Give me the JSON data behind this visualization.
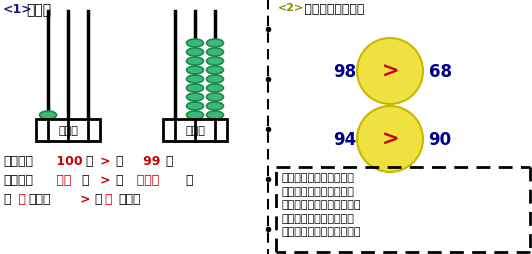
{
  "title_left": "<1>比大小",
  "title_right": "<2> 两位数之间的比较",
  "bg_color": "#ffffff",
  "bead_color": "#3cb878",
  "bead_outline": "#1a8a50",
  "box_label": "百十个",
  "circle_color": "#f0e040",
  "circle_outline": "#c8b800",
  "gt_color": "#cc0000",
  "numbers_row1_left": "98",
  "numbers_row1_right": "68",
  "numbers_row2_left": "94",
  "numbers_row2_right": "90",
  "num_color": "#00008b",
  "rule_text_color": "#000000",
  "dashed_color": "#000000",
  "rule_text": "先比数位，数位多的大；\n如果都是两位数，先比十\n位；十位大的那个数就大。\n如果十位相同，再比较个\n位，个位大的那个数就大。"
}
